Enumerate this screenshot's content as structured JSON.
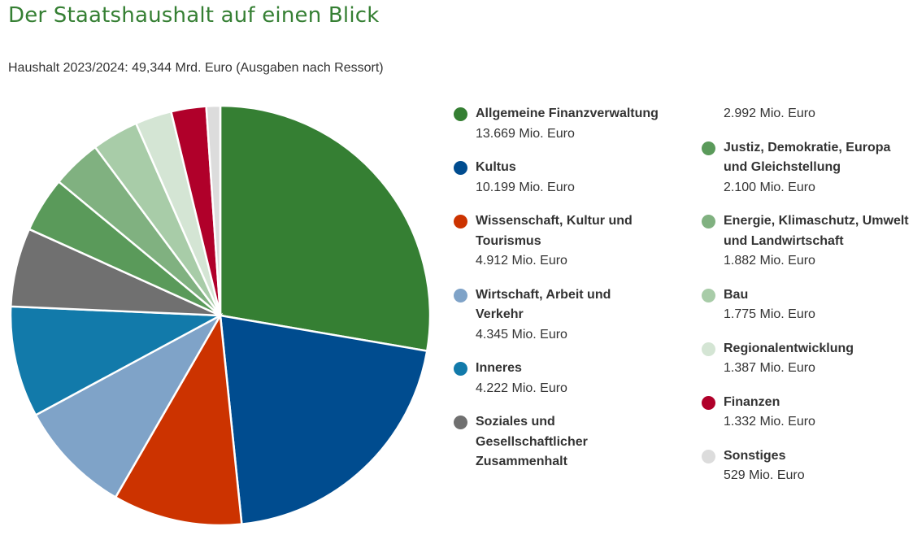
{
  "chart_data": {
    "type": "pie",
    "title": "Der Staatshaushalt auf einen Blick",
    "subtitle": "Haushalt 2023/2024: 49,344 Mrd. Euro (Ausgaben nach Ressort)",
    "categories": [
      "Allgemeine Finanzverwaltung",
      "Kultus",
      "Wissenschaft, Kultur und Tourismus",
      "Wirtschaft, Arbeit und Verkehr",
      "Inneres",
      "Soziales und Gesellschaftlicher Zusammenhalt",
      "Justiz, Demokratie, Europa und Gleichstellung",
      "Energie, Klimaschutz, Umwelt und Landwirtschaft",
      "Bau",
      "Regionalentwicklung",
      "Finanzen",
      "Sonstiges"
    ],
    "values": [
      13669,
      10199,
      4912,
      4345,
      4222,
      2992,
      2100,
      1882,
      1775,
      1387,
      1332,
      529
    ],
    "value_labels": [
      "13.669 Mio. Euro",
      "10.199 Mio. Euro",
      "4.912 Mio. Euro",
      "4.345 Mio. Euro",
      "4.222 Mio. Euro",
      "2.992 Mio. Euro",
      "2.100 Mio. Euro",
      "1.882 Mio. Euro",
      "1.775 Mio. Euro",
      "1.387 Mio. Euro",
      "1.332 Mio. Euro",
      "529 Mio. Euro"
    ],
    "colors": [
      "#357f33",
      "#004c8f",
      "#cc3300",
      "#7fa3c8",
      "#127aaa",
      "#707070",
      "#5a9a5a",
      "#80b180",
      "#a8cca8",
      "#d4e5d4",
      "#b0002a",
      "#dcdcdc"
    ]
  }
}
